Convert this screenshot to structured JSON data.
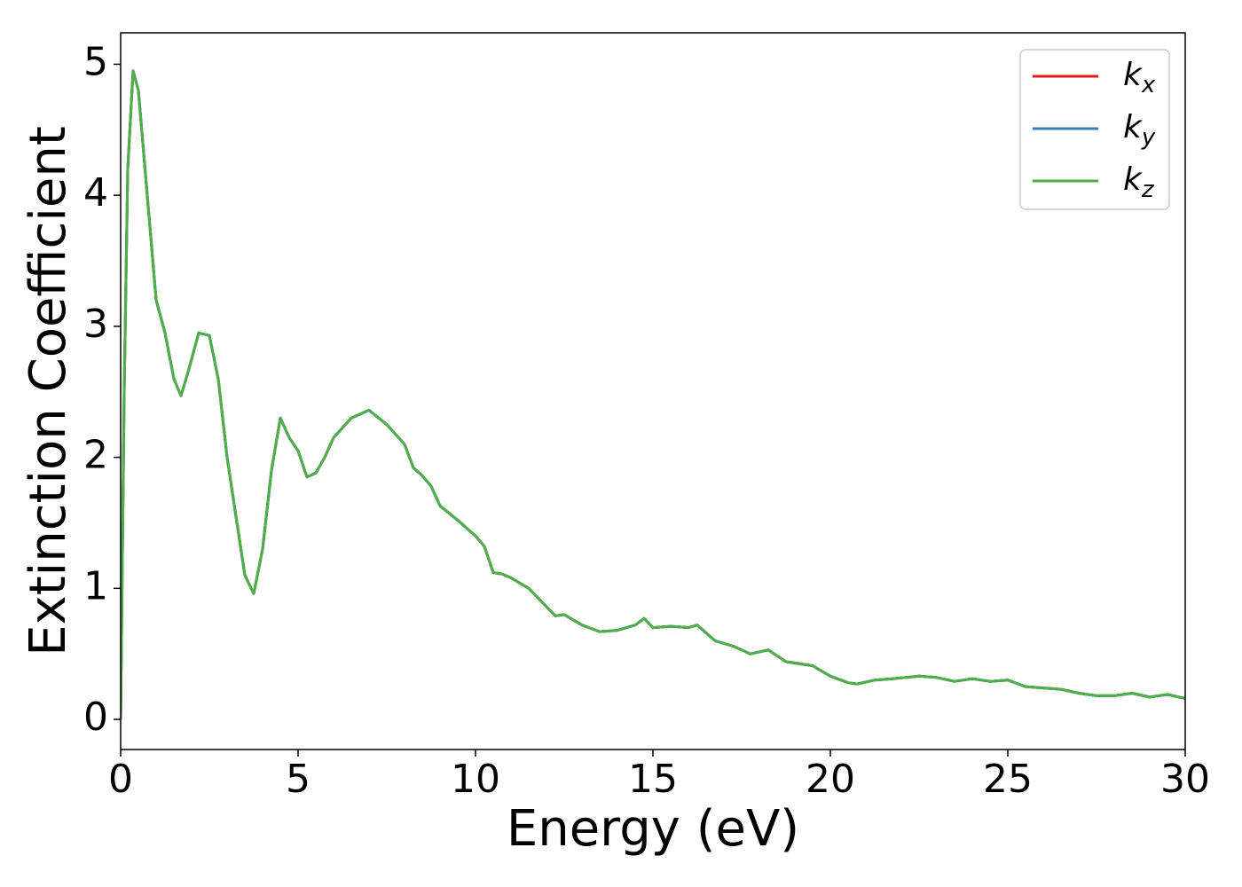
{
  "chart_data": {
    "type": "line",
    "xlabel": "Energy (eV)",
    "ylabel": "Extinction Coefficient",
    "x": [
      0,
      0.1,
      0.2,
      0.35,
      0.5,
      0.75,
      1.0,
      1.25,
      1.5,
      1.7,
      1.9,
      2.2,
      2.5,
      2.75,
      3.0,
      3.25,
      3.5,
      3.75,
      4.0,
      4.25,
      4.5,
      4.75,
      5.0,
      5.25,
      5.5,
      5.75,
      6.0,
      6.5,
      7.0,
      7.5,
      8.0,
      8.25,
      8.5,
      8.75,
      9.0,
      9.5,
      10.0,
      10.25,
      10.5,
      10.75,
      11.0,
      11.5,
      12.0,
      12.25,
      12.5,
      13.0,
      13.5,
      14.0,
      14.5,
      14.75,
      15.0,
      15.5,
      16.0,
      16.25,
      16.75,
      17.25,
      17.75,
      18.25,
      18.75,
      19.5,
      20.0,
      20.5,
      20.75,
      21.25,
      21.75,
      22.5,
      23.0,
      23.5,
      24.0,
      24.5,
      25.0,
      25.5,
      26.0,
      26.5,
      27.0,
      27.5,
      28.0,
      28.5,
      29.0,
      29.5,
      30.0
    ],
    "series": [
      {
        "name": "kx",
        "color": "#e41a1c",
        "values": [
          0,
          2.5,
          4.2,
          4.95,
          4.8,
          4.0,
          3.2,
          2.95,
          2.6,
          2.47,
          2.65,
          2.95,
          2.93,
          2.6,
          2.0,
          1.55,
          1.1,
          0.96,
          1.3,
          1.9,
          2.3,
          2.15,
          2.05,
          1.85,
          1.88,
          2.0,
          2.15,
          2.3,
          2.36,
          2.25,
          2.1,
          1.92,
          1.86,
          1.78,
          1.63,
          1.52,
          1.4,
          1.32,
          1.12,
          1.11,
          1.08,
          1.0,
          0.86,
          0.79,
          0.8,
          0.72,
          0.67,
          0.68,
          0.72,
          0.77,
          0.7,
          0.71,
          0.7,
          0.72,
          0.6,
          0.56,
          0.5,
          0.53,
          0.44,
          0.41,
          0.33,
          0.28,
          0.27,
          0.3,
          0.31,
          0.33,
          0.32,
          0.29,
          0.31,
          0.29,
          0.3,
          0.25,
          0.24,
          0.23,
          0.2,
          0.18,
          0.18,
          0.2,
          0.17,
          0.19,
          0.16
        ]
      },
      {
        "name": "ky",
        "color": "#377eb8",
        "values": [
          0,
          2.5,
          4.2,
          4.95,
          4.8,
          4.0,
          3.2,
          2.95,
          2.6,
          2.47,
          2.65,
          2.95,
          2.93,
          2.6,
          2.0,
          1.55,
          1.1,
          0.96,
          1.3,
          1.9,
          2.3,
          2.15,
          2.05,
          1.85,
          1.88,
          2.0,
          2.15,
          2.3,
          2.36,
          2.25,
          2.1,
          1.92,
          1.86,
          1.78,
          1.63,
          1.52,
          1.4,
          1.32,
          1.12,
          1.11,
          1.08,
          1.0,
          0.86,
          0.79,
          0.8,
          0.72,
          0.67,
          0.68,
          0.72,
          0.77,
          0.7,
          0.71,
          0.7,
          0.72,
          0.6,
          0.56,
          0.5,
          0.53,
          0.44,
          0.41,
          0.33,
          0.28,
          0.27,
          0.3,
          0.31,
          0.33,
          0.32,
          0.29,
          0.31,
          0.29,
          0.3,
          0.25,
          0.24,
          0.23,
          0.2,
          0.18,
          0.18,
          0.2,
          0.17,
          0.19,
          0.16
        ]
      },
      {
        "name": "kz",
        "color": "#4daf4a",
        "values": [
          0,
          2.5,
          4.2,
          4.95,
          4.8,
          4.0,
          3.2,
          2.95,
          2.6,
          2.47,
          2.65,
          2.95,
          2.93,
          2.6,
          2.0,
          1.55,
          1.1,
          0.96,
          1.3,
          1.9,
          2.3,
          2.15,
          2.05,
          1.85,
          1.88,
          2.0,
          2.15,
          2.3,
          2.36,
          2.25,
          2.1,
          1.92,
          1.86,
          1.78,
          1.63,
          1.52,
          1.4,
          1.32,
          1.12,
          1.11,
          1.08,
          1.0,
          0.86,
          0.79,
          0.8,
          0.72,
          0.67,
          0.68,
          0.72,
          0.77,
          0.7,
          0.71,
          0.7,
          0.72,
          0.6,
          0.56,
          0.5,
          0.53,
          0.44,
          0.41,
          0.33,
          0.28,
          0.27,
          0.3,
          0.31,
          0.33,
          0.32,
          0.29,
          0.31,
          0.29,
          0.3,
          0.25,
          0.24,
          0.23,
          0.2,
          0.18,
          0.18,
          0.2,
          0.17,
          0.19,
          0.16
        ]
      }
    ],
    "xlim": [
      0,
      30
    ],
    "xticks": [
      0,
      5,
      10,
      15,
      20,
      25,
      30
    ],
    "ylim": [
      -0.23,
      5.24
    ],
    "yticks": [
      0,
      1,
      2,
      3,
      4,
      5
    ],
    "grid": false,
    "legend": "upper right"
  }
}
